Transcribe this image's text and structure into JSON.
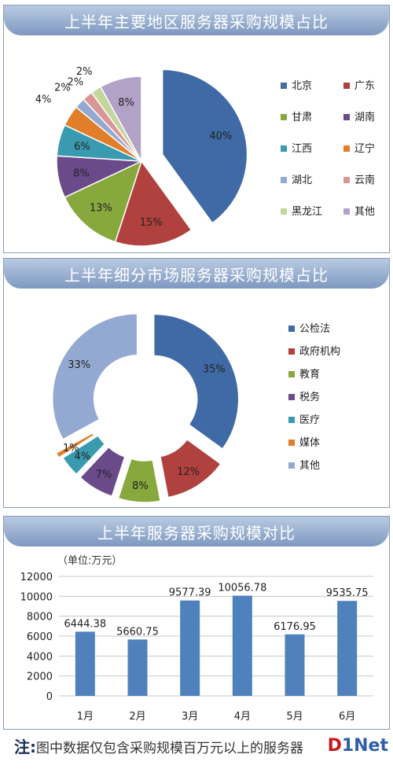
{
  "charts": [
    {
      "type": "pie",
      "title": "上半年主要地区服务器采购规模占比",
      "categories": [
        "北京",
        "广东",
        "甘肃",
        "湖南",
        "江西",
        "辽宁",
        "湖北",
        "云南",
        "黑龙江",
        "其他"
      ],
      "values": [
        40,
        15,
        13,
        8,
        6,
        4,
        2,
        2,
        2,
        8
      ],
      "labels": [
        "40%",
        "15%",
        "13%",
        "8%",
        "6%",
        "4%",
        "2%",
        "2%",
        "2%",
        "8%"
      ],
      "colors": [
        "#3f6aa5",
        "#b0413e",
        "#86a83c",
        "#6b4a8a",
        "#3a9ab0",
        "#e07e2a",
        "#94a9d2",
        "#d99694",
        "#c3d69b",
        "#b3a2c7"
      ],
      "legend": "right"
    },
    {
      "type": "donut",
      "title": "上半年细分市场服务器采购规模占比",
      "categories": [
        "公检法",
        "政府机构",
        "教育",
        "税务",
        "医疗",
        "媒体",
        "其他"
      ],
      "values": [
        35,
        12,
        8,
        7,
        4,
        1,
        33
      ],
      "labels": [
        "35%",
        "12%",
        "8%",
        "7%",
        "4%",
        "1%",
        "33%"
      ],
      "colors": [
        "#3f6aa5",
        "#b0413e",
        "#86a83c",
        "#6b4a8a",
        "#3a9ab0",
        "#e07e2a",
        "#94a9d2"
      ],
      "legend": "right"
    },
    {
      "type": "bar",
      "title": "上半年服务器采购规模对比",
      "unit_label": "（单位:万元）",
      "categories": [
        "1月",
        "2月",
        "3月",
        "4月",
        "5月",
        "6月"
      ],
      "values": [
        6444.38,
        5660.75,
        9577.39,
        10056.78,
        6176.95,
        9535.75
      ],
      "value_labels": [
        "6444.38",
        "5660.75",
        "9577.39",
        "10056.78",
        "6176.95",
        "9535.75"
      ],
      "y_ticks": [
        "0",
        "2000",
        "4000",
        "6000",
        "8000",
        "10000",
        "12000"
      ],
      "ylim": [
        0,
        12000
      ],
      "color": "#4f81bd",
      "grid": true
    }
  ],
  "note": {
    "mark": "注:",
    "text": "图中数据仅包含采购规模百万元以上的服务器"
  },
  "logo": {
    "part1": "D",
    "part2": "1Net"
  }
}
